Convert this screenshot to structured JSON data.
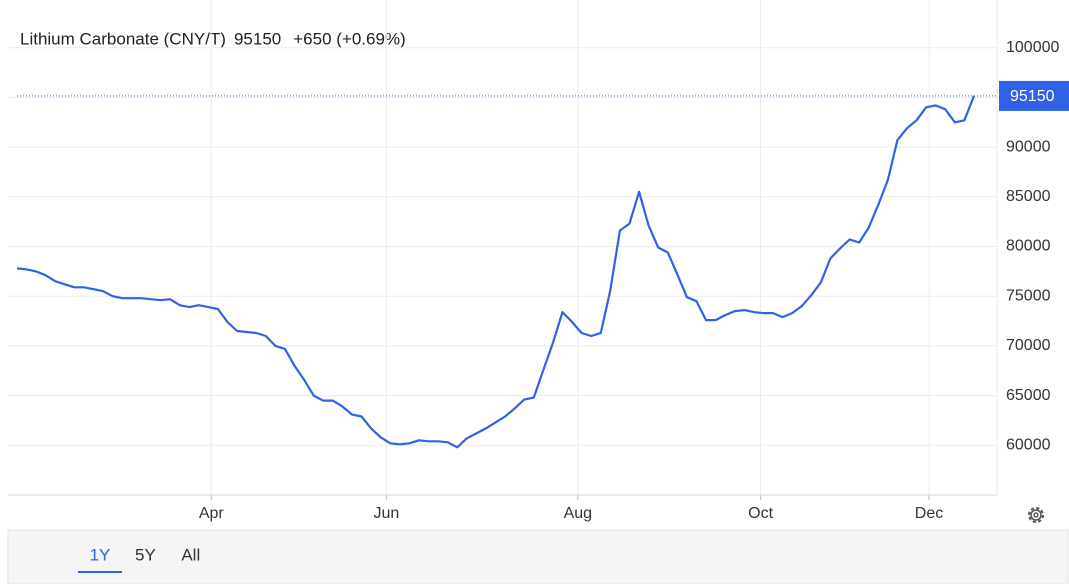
{
  "chart_data": {
    "type": "line",
    "title": "Lithium Carbonate (CNY/T)",
    "change": "+650 (+0.69%)",
    "change_color": "#3cab3c",
    "xlim": [
      0,
      100
    ],
    "ylim": [
      55000,
      104800
    ],
    "yticks": [
      60000,
      65000,
      70000,
      75000,
      80000,
      85000,
      90000,
      95000,
      100000
    ],
    "xticks": [
      {
        "value": 20.3,
        "label": "Apr"
      },
      {
        "value": 38.6,
        "label": "Jun"
      },
      {
        "value": 58.6,
        "label": "Aug"
      },
      {
        "value": 77.7,
        "label": "Oct"
      },
      {
        "value": 95.3,
        "label": "Dec"
      }
    ],
    "grid": true,
    "series": [
      {
        "color": "#2f62e6",
        "values": [
          77800,
          77700,
          77500,
          77100,
          76500,
          76200,
          75900,
          75900,
          75700,
          75500,
          75000,
          74800,
          74800,
          74800,
          74700,
          74600,
          74700,
          74100,
          73900,
          74100,
          73900,
          73700,
          72400,
          71500,
          71400,
          71300,
          71000,
          70000,
          69700,
          68000,
          66600,
          65000,
          64500,
          64500,
          63900,
          63100,
          62900,
          61700,
          60800,
          60200,
          60100,
          60200,
          60500,
          60400,
          60400,
          60300,
          59800,
          60700,
          61200,
          61700,
          62300,
          62900,
          63700,
          64600,
          64800,
          67600,
          70300,
          73400,
          72400,
          71300,
          71000,
          71300,
          75600,
          81600,
          82300,
          85500,
          82100,
          79900,
          79400,
          77200,
          74900,
          74500,
          72600,
          72600,
          73100,
          73500,
          73600,
          73400,
          73300,
          73300,
          72900,
          73300,
          74000,
          75100,
          76400,
          78800,
          79800,
          80700,
          80400,
          81900,
          84200,
          86700,
          90700,
          91900,
          92700,
          94000,
          94200,
          93800,
          92500,
          92700,
          95150
        ]
      }
    ],
    "range_buttons": [
      "1Y",
      "5Y",
      "All"
    ],
    "selected_range": "1Y"
  }
}
